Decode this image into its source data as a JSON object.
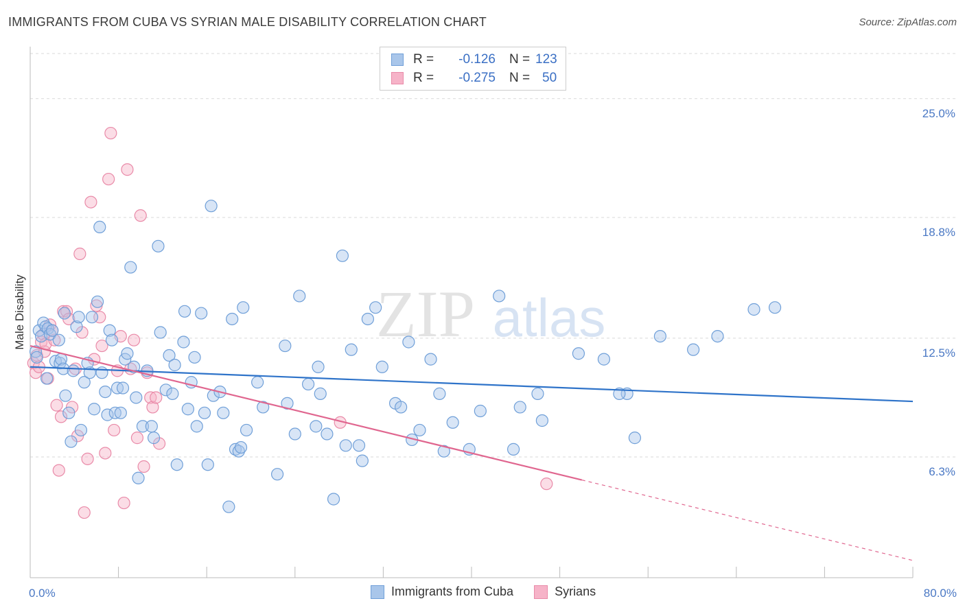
{
  "title": "IMMIGRANTS FROM CUBA VS SYRIAN MALE DISABILITY CORRELATION CHART",
  "source": "Source: ZipAtlas.com",
  "watermark": {
    "zip": "ZIP",
    "atlas": "atlas"
  },
  "legend": {
    "series": [
      {
        "r_label": "R =",
        "r_value": "-0.126",
        "n_label": "N =",
        "n_value": "123"
      },
      {
        "r_label": "R =",
        "r_value": "-0.275",
        "n_label": "N =",
        "n_value": "50"
      }
    ]
  },
  "bottom_legend": [
    "Immigrants from Cuba",
    "Syrians"
  ],
  "colors": {
    "blue_fill": "#a9c6ea",
    "blue_stroke": "#6f9fd8",
    "blue_line": "#2e73c9",
    "pink_fill": "#f6b3c8",
    "pink_stroke": "#e98aa8",
    "pink_line": "#e0668f",
    "tick_text": "#4a78c4",
    "grid": "#d9d9d9"
  },
  "chart_data": {
    "type": "scatter",
    "title": "IMMIGRANTS FROM CUBA VS SYRIAN MALE DISABILITY CORRELATION CHART",
    "xlabel": "",
    "ylabel": "Male Disability",
    "xlim": [
      0,
      80
    ],
    "ylim": [
      0,
      28
    ],
    "x_tick_labels": [
      "0.0%",
      "80.0%"
    ],
    "y_ticks": [
      6.3,
      12.5,
      18.8,
      25.0
    ],
    "y_tick_labels": [
      "6.3%",
      "12.5%",
      "18.8%",
      "25.0%"
    ],
    "grid": true,
    "legend_position": "top-center",
    "series": [
      {
        "name": "Immigrants from Cuba",
        "trend": {
          "x": [
            0,
            80
          ],
          "y": [
            11.0,
            9.2
          ],
          "dashed_from_x": null
        },
        "points": [
          [
            0.5,
            11.8
          ],
          [
            0.6,
            11.5
          ],
          [
            0.8,
            12.9
          ],
          [
            1.0,
            12.6
          ],
          [
            1.2,
            13.3
          ],
          [
            1.4,
            13.1
          ],
          [
            1.6,
            13.0
          ],
          [
            1.8,
            12.7
          ],
          [
            2.0,
            12.9
          ],
          [
            1.5,
            10.4
          ],
          [
            2.3,
            11.3
          ],
          [
            2.6,
            12.4
          ],
          [
            2.7,
            11.2
          ],
          [
            2.8,
            11.4
          ],
          [
            3.0,
            10.9
          ],
          [
            3.1,
            13.8
          ],
          [
            3.2,
            9.5
          ],
          [
            3.5,
            8.6
          ],
          [
            3.7,
            7.1
          ],
          [
            3.9,
            10.8
          ],
          [
            4.2,
            13.1
          ],
          [
            4.4,
            13.6
          ],
          [
            4.6,
            7.7
          ],
          [
            4.9,
            10.2
          ],
          [
            5.2,
            11.2
          ],
          [
            5.4,
            10.7
          ],
          [
            5.6,
            13.6
          ],
          [
            5.8,
            8.8
          ],
          [
            6.1,
            14.4
          ],
          [
            6.3,
            18.3
          ],
          [
            6.5,
            10.7
          ],
          [
            6.8,
            9.7
          ],
          [
            7.0,
            8.5
          ],
          [
            7.2,
            12.9
          ],
          [
            7.4,
            12.4
          ],
          [
            7.7,
            8.6
          ],
          [
            7.9,
            9.9
          ],
          [
            8.2,
            8.6
          ],
          [
            8.4,
            9.9
          ],
          [
            8.6,
            11.4
          ],
          [
            8.8,
            11.7
          ],
          [
            9.1,
            16.2
          ],
          [
            9.4,
            11.0
          ],
          [
            9.6,
            9.4
          ],
          [
            9.8,
            5.2
          ],
          [
            10.2,
            7.9
          ],
          [
            10.6,
            10.8
          ],
          [
            11.0,
            7.9
          ],
          [
            11.2,
            7.3
          ],
          [
            11.6,
            17.3
          ],
          [
            11.8,
            12.8
          ],
          [
            12.3,
            9.8
          ],
          [
            12.6,
            11.6
          ],
          [
            12.9,
            9.6
          ],
          [
            13.1,
            11.1
          ],
          [
            13.3,
            5.9
          ],
          [
            13.9,
            12.3
          ],
          [
            14.0,
            13.9
          ],
          [
            14.3,
            8.8
          ],
          [
            14.6,
            10.2
          ],
          [
            14.9,
            11.5
          ],
          [
            15.1,
            7.9
          ],
          [
            15.5,
            13.8
          ],
          [
            15.8,
            8.6
          ],
          [
            16.1,
            5.9
          ],
          [
            16.4,
            19.4
          ],
          [
            16.6,
            9.5
          ],
          [
            17.2,
            9.7
          ],
          [
            17.5,
            8.6
          ],
          [
            18.0,
            3.7
          ],
          [
            18.3,
            13.5
          ],
          [
            18.6,
            6.7
          ],
          [
            18.9,
            6.6
          ],
          [
            19.1,
            6.8
          ],
          [
            19.3,
            14.1
          ],
          [
            19.6,
            7.7
          ],
          [
            20.6,
            10.2
          ],
          [
            21.1,
            8.9
          ],
          [
            22.4,
            5.4
          ],
          [
            23.1,
            12.1
          ],
          [
            23.3,
            9.1
          ],
          [
            24.0,
            7.5
          ],
          [
            24.4,
            14.7
          ],
          [
            25.2,
            10.1
          ],
          [
            25.9,
            7.9
          ],
          [
            26.1,
            11.0
          ],
          [
            26.3,
            9.6
          ],
          [
            26.9,
            7.5
          ],
          [
            27.5,
            4.1
          ],
          [
            28.3,
            16.8
          ],
          [
            28.6,
            6.9
          ],
          [
            29.1,
            11.9
          ],
          [
            29.8,
            6.9
          ],
          [
            30.1,
            6.1
          ],
          [
            30.6,
            13.5
          ],
          [
            31.3,
            14.1
          ],
          [
            31.9,
            11.0
          ],
          [
            33.1,
            9.1
          ],
          [
            33.6,
            8.9
          ],
          [
            34.3,
            12.3
          ],
          [
            34.6,
            7.2
          ],
          [
            35.3,
            7.7
          ],
          [
            36.3,
            11.4
          ],
          [
            37.1,
            9.6
          ],
          [
            37.5,
            6.6
          ],
          [
            38.3,
            8.1
          ],
          [
            39.8,
            6.7
          ],
          [
            40.8,
            8.7
          ],
          [
            42.5,
            14.7
          ],
          [
            43.8,
            6.7
          ],
          [
            44.4,
            8.9
          ],
          [
            46.0,
            9.6
          ],
          [
            46.4,
            8.2
          ],
          [
            49.7,
            11.7
          ],
          [
            52.0,
            11.4
          ],
          [
            54.1,
            9.6
          ],
          [
            54.8,
            7.3
          ],
          [
            57.1,
            12.6
          ],
          [
            60.1,
            11.9
          ],
          [
            62.3,
            12.6
          ],
          [
            65.6,
            14.0
          ],
          [
            67.5,
            14.1
          ],
          [
            53.4,
            9.6
          ]
        ]
      },
      {
        "name": "Syrians",
        "trend": {
          "x": [
            0,
            80
          ],
          "y": [
            12.1,
            0.9
          ],
          "dashed_from_x": 50
        },
        "points": [
          [
            0.3,
            11.2
          ],
          [
            0.5,
            10.7
          ],
          [
            0.6,
            11.6
          ],
          [
            0.8,
            11.0
          ],
          [
            1.0,
            12.3
          ],
          [
            1.2,
            12.7
          ],
          [
            1.3,
            11.8
          ],
          [
            1.4,
            12.2
          ],
          [
            1.6,
            10.4
          ],
          [
            1.8,
            13.2
          ],
          [
            2.0,
            12.9
          ],
          [
            2.2,
            12.4
          ],
          [
            2.4,
            9.0
          ],
          [
            2.6,
            5.6
          ],
          [
            2.8,
            8.4
          ],
          [
            3.0,
            13.9
          ],
          [
            3.3,
            13.9
          ],
          [
            3.5,
            13.5
          ],
          [
            3.8,
            8.9
          ],
          [
            4.1,
            10.9
          ],
          [
            4.3,
            7.4
          ],
          [
            4.5,
            16.9
          ],
          [
            4.7,
            12.8
          ],
          [
            4.9,
            3.4
          ],
          [
            5.2,
            6.2
          ],
          [
            5.5,
            19.6
          ],
          [
            5.8,
            11.4
          ],
          [
            6.0,
            14.2
          ],
          [
            6.3,
            13.6
          ],
          [
            6.5,
            12.1
          ],
          [
            6.8,
            6.5
          ],
          [
            7.1,
            20.8
          ],
          [
            7.3,
            23.2
          ],
          [
            7.6,
            7.7
          ],
          [
            7.9,
            10.8
          ],
          [
            8.2,
            12.6
          ],
          [
            8.5,
            3.9
          ],
          [
            8.8,
            21.3
          ],
          [
            9.1,
            10.9
          ],
          [
            9.4,
            12.4
          ],
          [
            9.7,
            7.3
          ],
          [
            10.0,
            18.9
          ],
          [
            10.3,
            5.8
          ],
          [
            10.6,
            10.7
          ],
          [
            10.9,
            9.4
          ],
          [
            11.1,
            8.9
          ],
          [
            11.4,
            9.4
          ],
          [
            11.7,
            7.0
          ],
          [
            28.1,
            8.1
          ],
          [
            46.8,
            4.9
          ]
        ]
      }
    ]
  }
}
